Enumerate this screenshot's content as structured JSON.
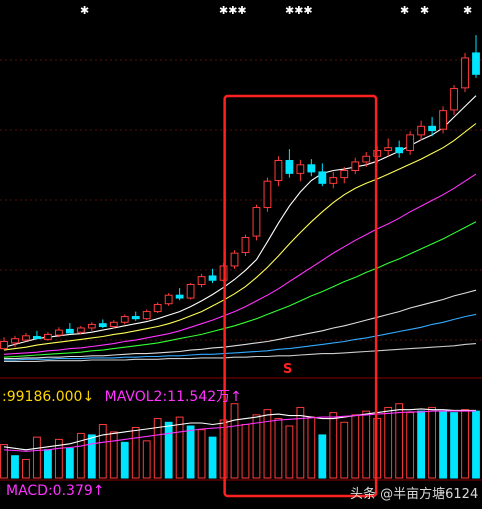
{
  "markers": {
    "top": [
      "✱",
      "✱✱✱",
      "✱✱✱",
      "✱",
      "✱",
      "✱"
    ],
    "signal": "S"
  },
  "volume": {
    "value_label": ":99186.000",
    "value_arrow": "↓",
    "mavol2_label": "MAVOL2:11.542万",
    "mavol2_arrow": "↑"
  },
  "macd": {
    "label": "MACD:0.379",
    "arrow": "↑"
  },
  "watermark": "头条 @半亩方塘6124",
  "colors": {
    "background": "#000000",
    "up": "#ff3b3b",
    "down": "#00e5ff",
    "highlight_box": "#ff2020",
    "ma5": "#ffffff",
    "ma10": "#ffff55",
    "ma20": "#ff33ff",
    "ma30": "#33ff33",
    "ma60": "#dddddd",
    "ma120": "#33aaff",
    "ma250": "#cccccc",
    "vol_label": "#ffd700",
    "mavol_label": "#ff33ff",
    "macd_label": "#ff33ff",
    "watermark": "#ffffff"
  },
  "chart_data": {
    "type": "candlestick",
    "candles": [
      {
        "o": 320,
        "h": 336,
        "l": 318,
        "c": 330,
        "up": true
      },
      {
        "o": 328,
        "h": 338,
        "l": 322,
        "c": 334,
        "up": true
      },
      {
        "o": 332,
        "h": 342,
        "l": 330,
        "c": 338,
        "up": true
      },
      {
        "o": 337,
        "h": 345,
        "l": 333,
        "c": 334,
        "up": false
      },
      {
        "o": 333,
        "h": 343,
        "l": 331,
        "c": 340,
        "up": true
      },
      {
        "o": 339,
        "h": 350,
        "l": 336,
        "c": 346,
        "up": true
      },
      {
        "o": 347,
        "h": 356,
        "l": 342,
        "c": 342,
        "up": false
      },
      {
        "o": 343,
        "h": 352,
        "l": 340,
        "c": 349,
        "up": true
      },
      {
        "o": 349,
        "h": 357,
        "l": 345,
        "c": 354,
        "up": true
      },
      {
        "o": 355,
        "h": 361,
        "l": 349,
        "c": 351,
        "up": false
      },
      {
        "o": 351,
        "h": 360,
        "l": 348,
        "c": 357,
        "up": true
      },
      {
        "o": 357,
        "h": 368,
        "l": 354,
        "c": 365,
        "up": true
      },
      {
        "o": 365,
        "h": 372,
        "l": 359,
        "c": 362,
        "up": false
      },
      {
        "o": 362,
        "h": 375,
        "l": 360,
        "c": 372,
        "up": true
      },
      {
        "o": 372,
        "h": 385,
        "l": 370,
        "c": 382,
        "up": true
      },
      {
        "o": 383,
        "h": 398,
        "l": 380,
        "c": 395,
        "up": true
      },
      {
        "o": 395,
        "h": 405,
        "l": 388,
        "c": 391,
        "up": false
      },
      {
        "o": 391,
        "h": 412,
        "l": 389,
        "c": 410,
        "up": true
      },
      {
        "o": 410,
        "h": 425,
        "l": 406,
        "c": 421,
        "up": true
      },
      {
        "o": 422,
        "h": 432,
        "l": 412,
        "c": 416,
        "up": false
      },
      {
        "o": 416,
        "h": 440,
        "l": 414,
        "c": 436,
        "up": true
      },
      {
        "o": 436,
        "h": 458,
        "l": 432,
        "c": 454,
        "up": true
      },
      {
        "o": 455,
        "h": 480,
        "l": 450,
        "c": 476,
        "up": true
      },
      {
        "o": 478,
        "h": 522,
        "l": 472,
        "c": 518,
        "up": true
      },
      {
        "o": 518,
        "h": 560,
        "l": 512,
        "c": 555,
        "up": true
      },
      {
        "o": 556,
        "h": 590,
        "l": 548,
        "c": 584,
        "up": true
      },
      {
        "o": 584,
        "h": 600,
        "l": 560,
        "c": 566,
        "up": false
      },
      {
        "o": 566,
        "h": 585,
        "l": 555,
        "c": 578,
        "up": true
      },
      {
        "o": 578,
        "h": 586,
        "l": 562,
        "c": 568,
        "up": false
      },
      {
        "o": 568,
        "h": 580,
        "l": 548,
        "c": 552,
        "up": false
      },
      {
        "o": 552,
        "h": 568,
        "l": 545,
        "c": 560,
        "up": true
      },
      {
        "o": 560,
        "h": 575,
        "l": 552,
        "c": 570,
        "up": true
      },
      {
        "o": 570,
        "h": 588,
        "l": 565,
        "c": 582,
        "up": true
      },
      {
        "o": 582,
        "h": 596,
        "l": 575,
        "c": 590,
        "up": true
      },
      {
        "o": 590,
        "h": 605,
        "l": 580,
        "c": 598,
        "up": true
      },
      {
        "o": 598,
        "h": 615,
        "l": 590,
        "c": 602,
        "up": true
      },
      {
        "o": 602,
        "h": 612,
        "l": 588,
        "c": 595,
        "up": false
      },
      {
        "o": 598,
        "h": 625,
        "l": 592,
        "c": 620,
        "up": true
      },
      {
        "o": 620,
        "h": 640,
        "l": 612,
        "c": 632,
        "up": true
      },
      {
        "o": 632,
        "h": 645,
        "l": 618,
        "c": 626,
        "up": false
      },
      {
        "o": 628,
        "h": 660,
        "l": 622,
        "c": 654,
        "up": true
      },
      {
        "o": 655,
        "h": 690,
        "l": 648,
        "c": 685,
        "up": true
      },
      {
        "o": 686,
        "h": 735,
        "l": 680,
        "c": 728,
        "up": true
      },
      {
        "o": 735,
        "h": 760,
        "l": 700,
        "c": 705,
        "up": false
      }
    ],
    "volumes": [
      {
        "v": 45,
        "up": true
      },
      {
        "v": 30,
        "up": false
      },
      {
        "v": 25,
        "up": true
      },
      {
        "v": 55,
        "up": true
      },
      {
        "v": 38,
        "up": false
      },
      {
        "v": 52,
        "up": true
      },
      {
        "v": 40,
        "up": false
      },
      {
        "v": 60,
        "up": true
      },
      {
        "v": 58,
        "up": false
      },
      {
        "v": 72,
        "up": true
      },
      {
        "v": 62,
        "up": true
      },
      {
        "v": 48,
        "up": false
      },
      {
        "v": 68,
        "up": true
      },
      {
        "v": 50,
        "up": true
      },
      {
        "v": 80,
        "up": true
      },
      {
        "v": 75,
        "up": false
      },
      {
        "v": 82,
        "up": true
      },
      {
        "v": 70,
        "up": false
      },
      {
        "v": 65,
        "up": true
      },
      {
        "v": 55,
        "up": false
      },
      {
        "v": 78,
        "up": true
      },
      {
        "v": 100,
        "up": true
      },
      {
        "v": 72,
        "up": true
      },
      {
        "v": 85,
        "up": true
      },
      {
        "v": 92,
        "up": true
      },
      {
        "v": 80,
        "up": true
      },
      {
        "v": 70,
        "up": true
      },
      {
        "v": 95,
        "up": true
      },
      {
        "v": 82,
        "up": true
      },
      {
        "v": 58,
        "up": false
      },
      {
        "v": 88,
        "up": true
      },
      {
        "v": 75,
        "up": true
      },
      {
        "v": 85,
        "up": true
      },
      {
        "v": 90,
        "up": true
      },
      {
        "v": 80,
        "up": true
      },
      {
        "v": 95,
        "up": true
      },
      {
        "v": 100,
        "up": true
      },
      {
        "v": 88,
        "up": true
      },
      {
        "v": 90,
        "up": false
      },
      {
        "v": 95,
        "up": true
      },
      {
        "v": 90,
        "up": false
      },
      {
        "v": 88,
        "up": false
      },
      {
        "v": 92,
        "up": true
      },
      {
        "v": 90,
        "up": false
      }
    ],
    "ma_lines": {
      "ma5": [
        322,
        326,
        330,
        334,
        336,
        338,
        340,
        341,
        343,
        346,
        349,
        352,
        355,
        358,
        362,
        367,
        372,
        379,
        387,
        396,
        406,
        417,
        430,
        445,
        470,
        496,
        520,
        540,
        556,
        566,
        570,
        572,
        575,
        578,
        583,
        590,
        597,
        605,
        613,
        620,
        630,
        645,
        660,
        675
      ],
      "ma10": [
        318,
        320,
        322,
        325,
        327,
        329,
        331,
        333,
        335,
        337,
        340,
        342,
        345,
        348,
        351,
        355,
        360,
        366,
        372,
        380,
        388,
        397,
        407,
        420,
        434,
        450,
        467,
        483,
        498,
        512,
        525,
        536,
        545,
        552,
        558,
        565,
        572,
        579,
        586,
        594,
        602,
        612,
        624,
        636
      ],
      "ma20": [
        312,
        313,
        314,
        315,
        317,
        318,
        320,
        321,
        323,
        325,
        327,
        330,
        332,
        335,
        338,
        341,
        345,
        350,
        355,
        360,
        366,
        372,
        379,
        387,
        395,
        404,
        414,
        424,
        434,
        444,
        454,
        463,
        472,
        480,
        488,
        495,
        503,
        512,
        520,
        528,
        536,
        545,
        555,
        565
      ],
      "ma30": [
        308,
        309,
        310,
        311,
        312,
        313,
        314,
        315,
        317,
        318,
        320,
        322,
        324,
        326,
        328,
        331,
        334,
        337,
        340,
        344,
        348,
        352,
        357,
        362,
        368,
        374,
        380,
        387,
        394,
        400,
        407,
        414,
        420,
        427,
        433,
        440,
        446,
        453,
        460,
        467,
        474,
        482,
        490,
        498
      ],
      "ma60": [
        306,
        306,
        307,
        307,
        308,
        308,
        309,
        309,
        310,
        310,
        311,
        312,
        313,
        313,
        314,
        315,
        316,
        318,
        319,
        321,
        322,
        324,
        326,
        328,
        330,
        333,
        336,
        339,
        342,
        345,
        349,
        352,
        356,
        360,
        364,
        368,
        372,
        377,
        381,
        385,
        389,
        394,
        398,
        402
      ],
      "ma120": [
        304,
        304,
        305,
        305,
        305,
        306,
        306,
        306,
        307,
        307,
        307,
        308,
        308,
        309,
        309,
        310,
        310,
        311,
        312,
        312,
        313,
        314,
        315,
        316,
        317,
        319,
        320,
        322,
        324,
        326,
        328,
        330,
        333,
        335,
        338,
        341,
        344,
        347,
        350,
        354,
        357,
        361,
        365,
        368
      ],
      "ma250": [
        302,
        302,
        302,
        302,
        303,
        303,
        303,
        303,
        304,
        304,
        304,
        304,
        305,
        305,
        305,
        306,
        306,
        306,
        307,
        307,
        307,
        308,
        308,
        309,
        309,
        310,
        310,
        311,
        312,
        313,
        313,
        314,
        315,
        316,
        317,
        318,
        319,
        320,
        321,
        322,
        323,
        324,
        326,
        327
      ]
    },
    "mavol_lines": {
      "mavol1": [
        42,
        40,
        38,
        40,
        42,
        44,
        46,
        50,
        54,
        58,
        60,
        62,
        64,
        66,
        68,
        70,
        72,
        74,
        74,
        72,
        74,
        78,
        80,
        82,
        85,
        86,
        84,
        84,
        82,
        80,
        80,
        82,
        84,
        86,
        88,
        90,
        92,
        92,
        93,
        92,
        92,
        91,
        91,
        91
      ],
      "mavol2": [
        38,
        37,
        36,
        37,
        38,
        40,
        41,
        43,
        46,
        48,
        50,
        52,
        54,
        56,
        58,
        60,
        62,
        64,
        66,
        67,
        68,
        70,
        72,
        74,
        76,
        78,
        79,
        80,
        81,
        82,
        82,
        83,
        84,
        85,
        86,
        87,
        88,
        89,
        89,
        90,
        90,
        90,
        90,
        90
      ]
    },
    "highlight_range": [
      21,
      33
    ]
  }
}
